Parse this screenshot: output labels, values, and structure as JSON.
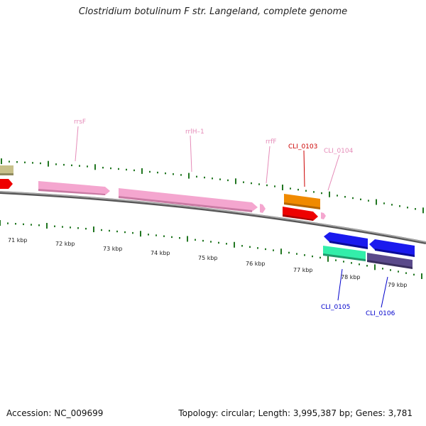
{
  "title": "Clostridium botulinum F str. Langeland, complete genome",
  "footer": {
    "accession": "Accession: NC_009699",
    "summary": "Topology: circular; Length: 3,995,387 bp; Genes: 3,781"
  },
  "scale_labels": [
    "71 kbp",
    "72 kbp",
    "73 kbp",
    "74 kbp",
    "75 kbp",
    "76 kbp",
    "77 kbp",
    "78 kbp",
    "79 kbp"
  ],
  "feature_labels": {
    "rrsF": "rrsF",
    "rrlH1": "rrlH–1",
    "rrfF": "rrfF",
    "cli0103": "CLI_0103",
    "cli0104": "CLI_0104",
    "cli0105": "CLI_0105",
    "cli0106": "CLI_0106"
  },
  "colors": {
    "rrna": "#f4a6cf",
    "label_rrna": "#e58bb8",
    "red_gene": "#ee0000",
    "orange_gene": "#f08a00",
    "blue_gene": "#1a1aee",
    "green_gene": "#33eeaa",
    "purple_gene": "#5a4a8a",
    "olive_gene": "#c8c08a",
    "label_red": "#cc0000",
    "label_blue": "#0000cc",
    "tick_green": "#227722",
    "backbone": "#888888"
  }
}
